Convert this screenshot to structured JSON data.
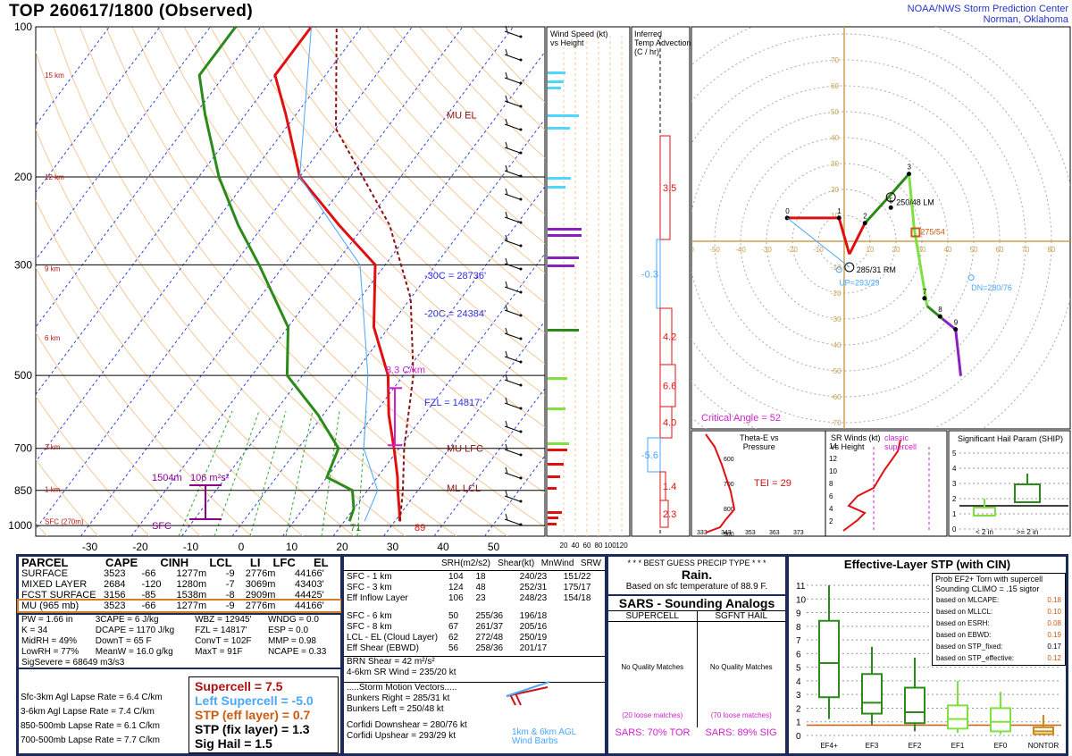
{
  "header": {
    "title": "TOP   260617/1800  (Observed)",
    "org_line1": "NOAA/NWS Storm Prediction Center",
    "org_line2": "Norman, Oklahoma"
  },
  "skewt": {
    "pressure_ticks": [
      "100",
      "200",
      "300",
      "500",
      "700",
      "850",
      "1000"
    ],
    "temp_ticks": [
      "-30",
      "-20",
      "-10",
      "0",
      "10",
      "20",
      "30",
      "40",
      "50"
    ],
    "height_labels": [
      "15 km",
      "12 km",
      "9 km",
      "6 km",
      "3 km",
      "1 km",
      "SFC (270m)"
    ],
    "annotations": {
      "mu_el": "MU  EL",
      "mu_lfc": "MU  LFC",
      "ml_lcl": "ML  LCL",
      "minus30": "-30C = 28736'",
      "minus20": "-20C = 24384'",
      "fzl": "FZL = 14817'",
      "lapse": "8.3 C/km",
      "srh_height": "1504m",
      "srh_value": "106 m²s²",
      "sfc": "SFC",
      "td_sfc": "71",
      "t_sfc": "89"
    }
  },
  "wind_panel": {
    "title1": "Wind Speed (kt)",
    "title2": "vs Height",
    "ticks": [
      "20",
      "40",
      "60",
      "80",
      "100",
      "120"
    ]
  },
  "tadv_panel": {
    "title1": "Inferred",
    "title2": "Temp Advection",
    "title3": "(C / hr)",
    "values": [
      "3.5",
      "-0.3",
      "4.2",
      "6.6",
      "4.0",
      "-5.6",
      "1.4",
      "2.3"
    ]
  },
  "hodograph": {
    "rings": [
      "10",
      "20",
      "30",
      "40",
      "50",
      "60",
      "70"
    ],
    "x_ticks": [
      "10",
      "20",
      "30",
      "40",
      "50",
      "60",
      "70",
      "80"
    ],
    "labels": {
      "lm": "250/48 LM",
      "rm": "285/31 RM",
      "up": "UP=293/29",
      "dn": "DN=280/76",
      "mean": "275/54",
      "critical": "Critical Angle = 52"
    },
    "points": [
      "0",
      "1",
      "2",
      "3",
      "5",
      "7",
      "8",
      "9"
    ]
  },
  "theta_panel": {
    "title1": "Theta-E vs",
    "title2": "Pressure",
    "tei": "TEI = 29",
    "y_ticks": [
      "600",
      "700",
      "800",
      "900"
    ],
    "x_ticks": [
      "333",
      "343",
      "353",
      "363",
      "373"
    ]
  },
  "srwind_panel": {
    "title1": "SR Winds (kt)",
    "title2": "vs Height",
    "label": "classic",
    "label2": "supercell",
    "y_ticks": [
      "14",
      "12",
      "10",
      "8",
      "6",
      "4",
      "2"
    ]
  },
  "ship_panel": {
    "title": "Significant Hail Param (SHIP)",
    "x_labels": [
      "< 2 in",
      ">= 2 in"
    ],
    "y_ticks": [
      "5",
      "4",
      "3",
      "2",
      "1",
      "0"
    ]
  },
  "parcels": {
    "headers": [
      "PARCEL",
      "CAPE",
      "CINH",
      "LCL",
      "LI",
      "LFC",
      "EL"
    ],
    "rows": [
      [
        "SURFACE",
        "3523",
        "-66",
        "1277m",
        "-9",
        "2776m",
        "44166'"
      ],
      [
        "MIXED LAYER",
        "2684",
        "-120",
        "1280m",
        "-7",
        "3069m",
        "43403'"
      ],
      [
        "FCST SURFACE",
        "3156",
        "-85",
        "1538m",
        "-8",
        "2909m",
        "44425'"
      ],
      [
        "MU    (965 mb)",
        "3523",
        "-66",
        "1277m",
        "-9",
        "2776m",
        "44166'"
      ]
    ],
    "indices": [
      [
        "PW = 1.66 in",
        "3CAPE = 6 J/kg",
        "WBZ = 12945'",
        "WNDG = 0.0"
      ],
      [
        "K = 34",
        "DCAPE = 1170 J/kg",
        "FZL = 14817'",
        "ESP = 0.0"
      ],
      [
        "MidRH = 49%",
        "DownT = 65 F",
        "ConvT = 102F",
        "MMP = 0.98"
      ],
      [
        "LowRH = 77%",
        "MeanW = 16.0 g/kg",
        "MaxT = 91F",
        "NCAPE = 0.33"
      ]
    ],
    "sigsevere": "SigSevere = 68649 m3/s3",
    "lapse_rates": [
      [
        "Sfc-3km Agl Lapse Rate = 6.4 C/km"
      ],
      [
        "3-6km Agl Lapse Rate = 7.4 C/km"
      ],
      [
        "850-500mb Lapse Rate = 6.1 C/km"
      ],
      [
        "700-500mb Lapse Rate = 7.7 C/km"
      ]
    ],
    "composite": {
      "supercell": "Supercell = 7.5",
      "left_supercell": "Left Supercell = -5.0",
      "stp_eff": "STP (eff layer) = 0.7",
      "stp_fix": "STP (fix layer) = 1.3",
      "sig_hail": "Sig Hail = 1.5"
    }
  },
  "kinematics": {
    "headers": [
      "SRH(m2/s2)",
      "Shear(kt)",
      "MnWind",
      "SRW"
    ],
    "rows": [
      [
        "SFC - 1 km",
        "104",
        "18",
        "240/23",
        "151/22"
      ],
      [
        "SFC - 3 km",
        "124",
        "48",
        "252/31",
        "175/17"
      ],
      [
        "Eff Inflow Layer",
        "106",
        "23",
        "248/23",
        "154/18"
      ],
      [
        "",
        "",
        "",
        "",
        ""
      ],
      [
        "SFC - 6 km",
        "50",
        "255/36",
        "196/18",
        ""
      ],
      [
        "SFC - 8 km",
        "67",
        "261/37",
        "205/16",
        ""
      ],
      [
        "LCL - EL (Cloud Layer)",
        "62",
        "272/48",
        "250/19",
        ""
      ],
      [
        "Eff Shear (EBWD)",
        "56",
        "258/36",
        "201/17",
        ""
      ]
    ],
    "brn": "BRN Shear = 42 m²/s²",
    "sr46": "4-6km SR Wind =          235/20 kt",
    "storm_vectors_title": ".....Storm Motion Vectors.....",
    "bunkers_right": "Bunkers Right =        285/31 kt",
    "bunkers_left": "Bunkers Left =          250/48 kt",
    "corfidi_down": "Corfidi Downshear =    280/76 kt",
    "corfidi_up": "Corfidi Upshear =      293/29 kt",
    "barb_label1": "1km & 6km AGL",
    "barb_label2": "Wind Barbs"
  },
  "precip": {
    "title": "* * * BEST GUESS PRECIP TYPE * * *",
    "value": "Rain.",
    "note": "Based on sfc temperature of 88.9 F."
  },
  "sars": {
    "title": "SARS - Sounding Analogs",
    "col1": "SUPERCELL",
    "col2": "SGFNT HAIL",
    "nomatch1": "No Quality Matches",
    "nomatch2": "No Quality Matches",
    "loose1": "(20 loose matches)",
    "loose2": "(70 loose matches)",
    "sars1": "SARS: 70% TOR",
    "sars2": "SARS: 89% SIG"
  },
  "stp": {
    "title": "Effective-Layer STP (with CIN)",
    "y_ticks": [
      "11",
      "10",
      "9",
      "8",
      "7",
      "6",
      "5",
      "4",
      "3",
      "2",
      "1",
      "0"
    ],
    "categories": [
      "EF4+",
      "EF3",
      "EF2",
      "EF1",
      "EF0",
      "NONTOR"
    ],
    "prob_title1": "Prob EF2+ Torn with supercell",
    "prob_title2": "Sounding CLIMO = .15 sigtor",
    "probs": [
      [
        "based on MLCAPE:",
        "0.18"
      ],
      [
        "based on MLLCL:",
        "0.10"
      ],
      [
        "based on ESRH:",
        "0.08"
      ],
      [
        "based on EBWD:",
        "0.19"
      ],
      [
        "based on STP_fixed:",
        "0.17"
      ],
      [
        "based on STP_effective:",
        "0.12"
      ]
    ]
  },
  "chart_data": [
    {
      "type": "line",
      "title": "TOP 260617/1800 (Observed)",
      "xlabel": "",
      "ylabel": "",
      "ylim": [
        1000,
        100
      ],
      "xlim": [
        -30,
        50
      ],
      "series": [
        {
          "name": "",
          "x": [
            31,
            29,
            26,
            24,
            19,
            13,
            7,
            -3,
            -12,
            -25,
            -40,
            -52,
            -60,
            -60
          ],
          "y": [
            980,
            925,
            850,
            800,
            700,
            600,
            500,
            400,
            300,
            250,
            200,
            150,
            125,
            100
          ]
        },
        {
          "name": "",
          "x": [
            21,
            20,
            17,
            10,
            8,
            -1,
            -13,
            -20,
            -35,
            -45,
            -56,
            -68,
            -75,
            -75
          ],
          "y": [
            980,
            925,
            850,
            800,
            700,
            600,
            500,
            400,
            300,
            250,
            200,
            150,
            125,
            100
          ]
        }
      ]
    },
    {
      "type": "box",
      "title": "Effective-Layer STP (with CIN)",
      "categories": [
        "EF4+",
        "EF3",
        "EF2",
        "EF1",
        "EF0",
        "NONTOR"
      ],
      "ylim": [
        0,
        11
      ],
      "series": [
        {
          "name": "",
          "values": [
            [
              1.2,
              2.8,
              5.3,
              8.4,
              11.0
            ],
            [
              0.8,
              1.6,
              2.4,
              4.5,
              6.5
            ],
            [
              0.3,
              0.9,
              1.7,
              3.5,
              5.7
            ],
            [
              0.2,
              0.5,
              1.2,
              2.2,
              4.0
            ],
            [
              0.1,
              0.3,
              1.0,
              2.0,
              3.2
            ],
            [
              0.0,
              0.1,
              0.3,
              0.6,
              1.5
            ]
          ]
        }
      ]
    }
  ]
}
